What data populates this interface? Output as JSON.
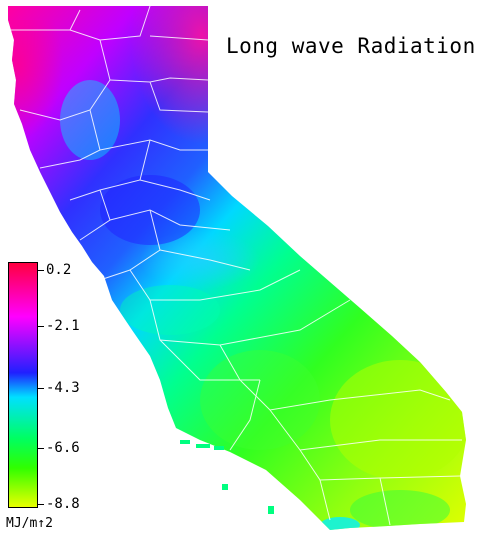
{
  "title": "Long wave Radiation",
  "legend": {
    "ticks": [
      "0.2",
      "-2.1",
      "-4.3",
      "-6.6",
      "-8.8"
    ],
    "unit": "MJ/m↑2",
    "colors": [
      "#ff0040",
      "#ff00ff",
      "#2020ff",
      "#00e0ff",
      "#00ff60",
      "#30ff00",
      "#e8ff00"
    ]
  }
}
